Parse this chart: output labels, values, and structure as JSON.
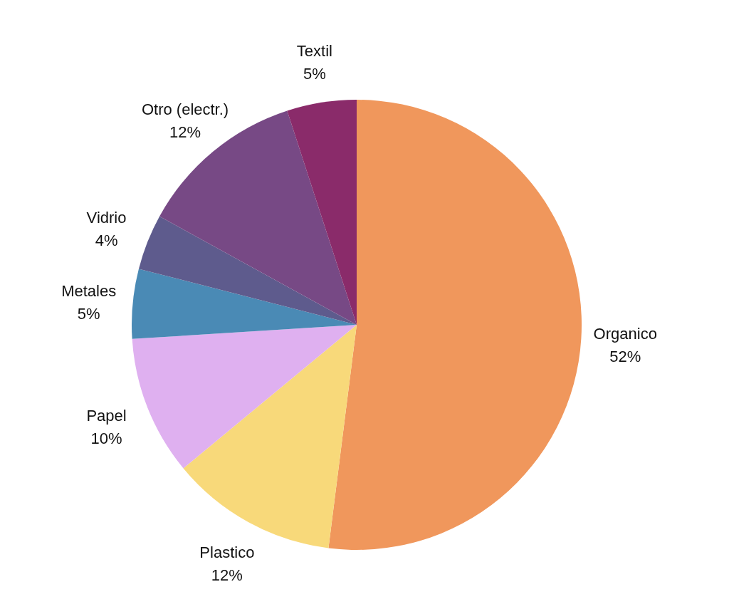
{
  "chart_data": {
    "type": "pie",
    "categories": [
      "Organico",
      "Plastico",
      "Papel",
      "Metales",
      "Vidrio",
      "Otro (electr.)",
      "Textil"
    ],
    "values": [
      52,
      12,
      10,
      5,
      4,
      12,
      5
    ],
    "value_labels": [
      "52%",
      "12%",
      "10%",
      "5%",
      "4%",
      "12%",
      "5%"
    ],
    "colors": [
      "#f0975c",
      "#f8d97a",
      "#dfb0f0",
      "#4a8ab5",
      "#5e5b8d",
      "#774985",
      "#8a2b6a"
    ],
    "legend": false
  }
}
